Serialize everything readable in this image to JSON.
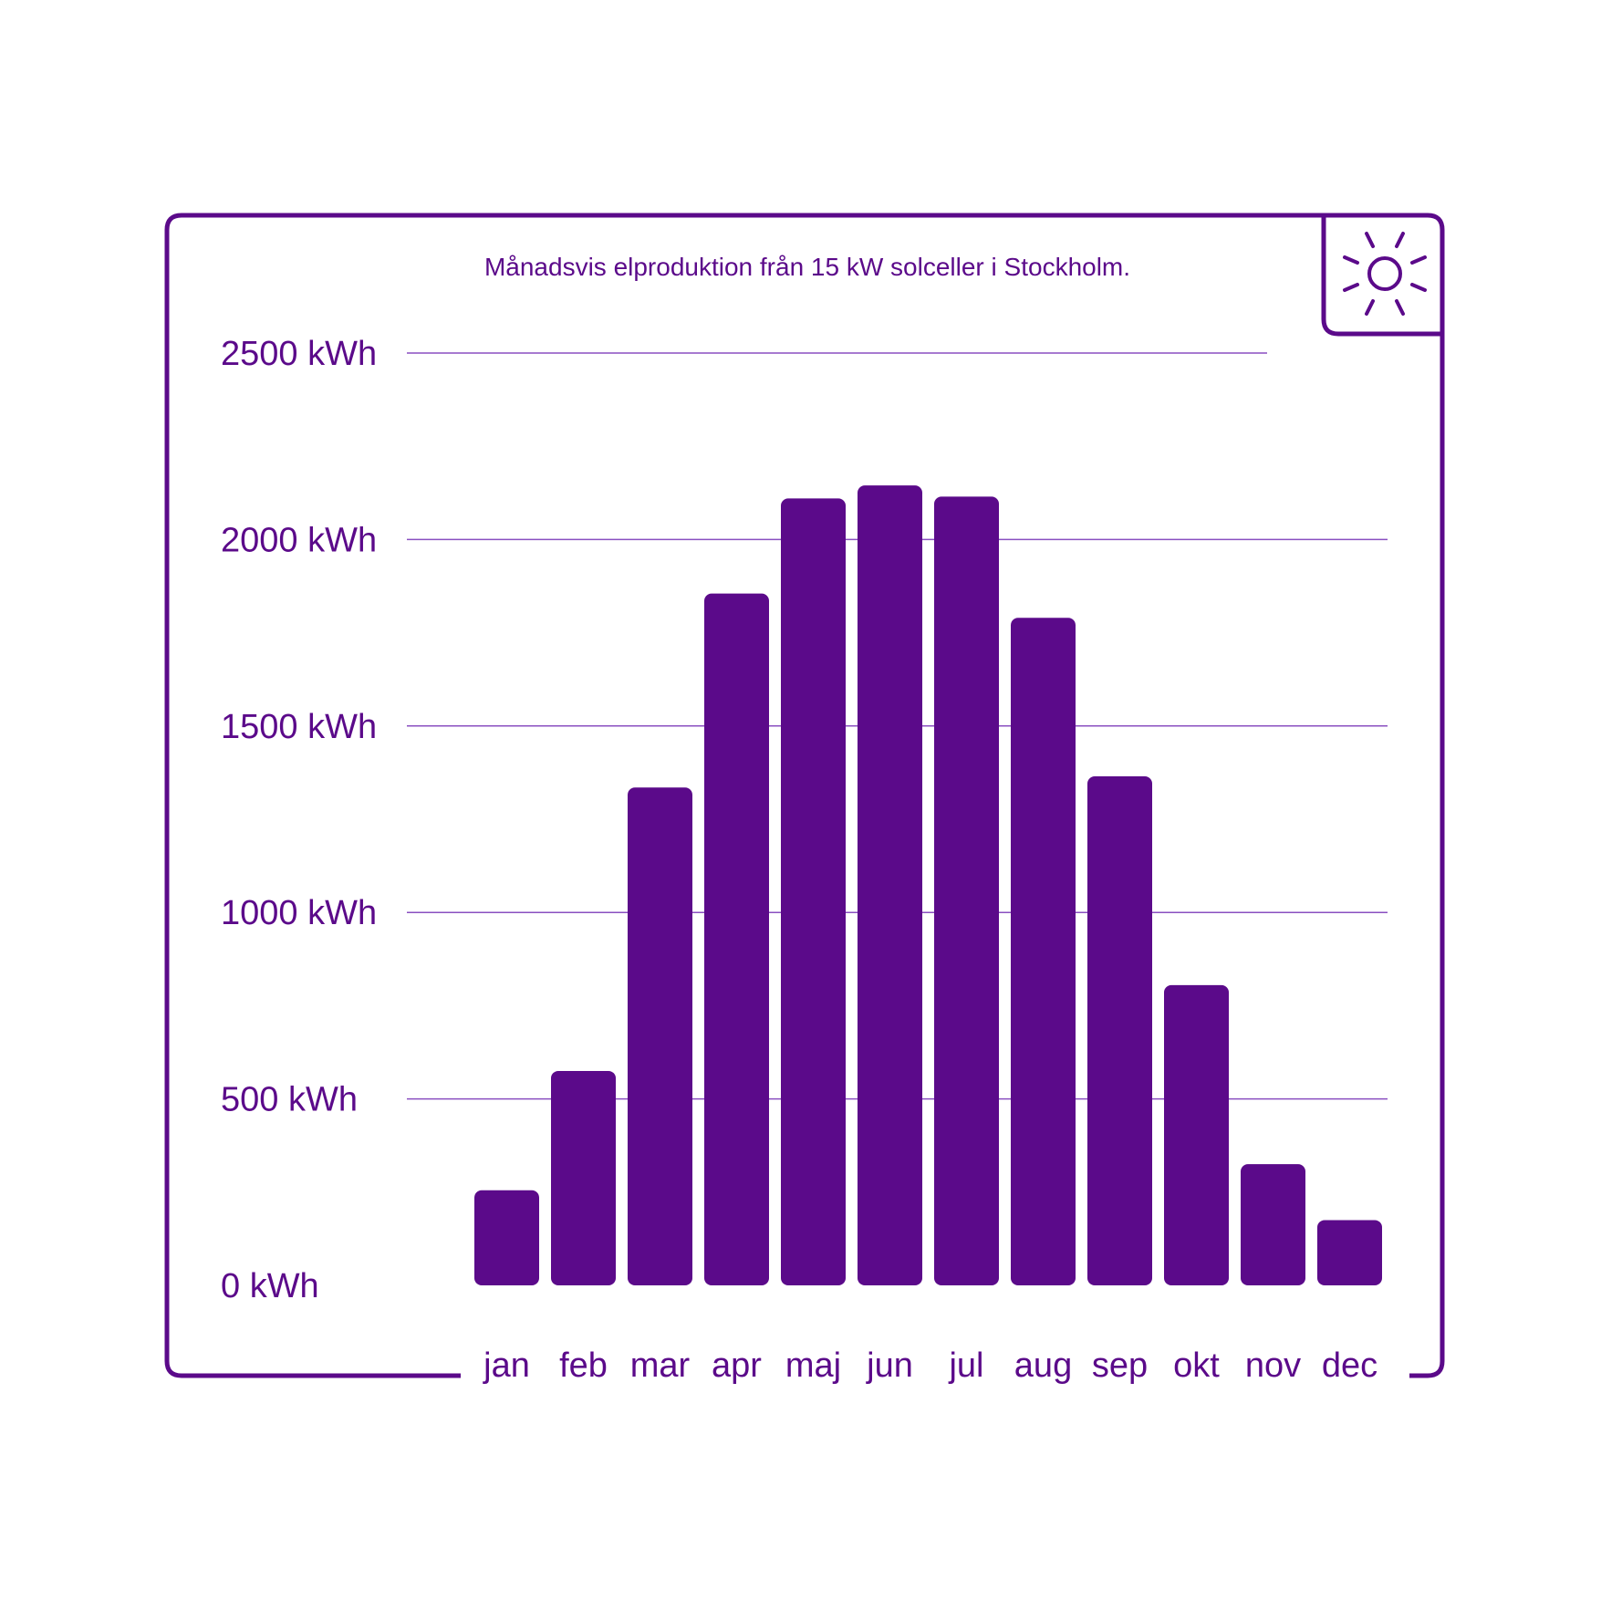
{
  "colors": {
    "accent": "#5b0a8a",
    "gridline": "#8a4fc0",
    "background": "#ffffff"
  },
  "icon": "sun-icon",
  "chart_data": {
    "type": "bar",
    "title": "Månadsvis elproduktion från 15 kW solceller i Stockholm.",
    "xlabel": "",
    "ylabel": "",
    "ylim": [
      0,
      2500
    ],
    "yticks": [
      0,
      500,
      1000,
      1500,
      2000,
      2500
    ],
    "ytick_labels": [
      "0 kWh",
      "500 kWh",
      "1000 kWh",
      "1500 kWh",
      "2000 kWh",
      "2500 kWh"
    ],
    "categories": [
      "jan",
      "feb",
      "mar",
      "apr",
      "maj",
      "jun",
      "jul",
      "aug",
      "sep",
      "okt",
      "nov",
      "dec"
    ],
    "values": [
      255,
      575,
      1335,
      1855,
      2110,
      2145,
      2115,
      1790,
      1365,
      805,
      325,
      175
    ],
    "grid": true,
    "legend": "none"
  }
}
